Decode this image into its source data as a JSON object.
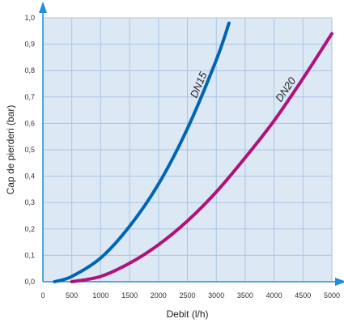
{
  "chart_data": {
    "type": "line",
    "xlabel": "Debit (l/h)",
    "ylabel": "Cap de pierderi (bar)",
    "xlim": [
      0,
      5000
    ],
    "ylim": [
      0,
      1.0
    ],
    "x_ticks": [
      "0",
      "500",
      "1000",
      "1500",
      "2000",
      "2500",
      "3000",
      "3500",
      "4000",
      "4500",
      "5000"
    ],
    "y_ticks": [
      "0,0",
      "0,1",
      "0,2",
      "0,3",
      "0,4",
      "0,5",
      "0,6",
      "0,7",
      "0,8",
      "0,9",
      "1,0"
    ],
    "grid": true,
    "series": [
      {
        "name": "DN15",
        "color": "#0066b3",
        "points": [
          [
            200,
            0.0
          ],
          [
            500,
            0.02
          ],
          [
            1000,
            0.09
          ],
          [
            1500,
            0.21
          ],
          [
            2000,
            0.37
          ],
          [
            2500,
            0.58
          ],
          [
            3000,
            0.84
          ],
          [
            3220,
            0.98
          ]
        ]
      },
      {
        "name": "DN20",
        "color": "#b0127a",
        "points": [
          [
            500,
            0.0
          ],
          [
            1000,
            0.02
          ],
          [
            1500,
            0.07
          ],
          [
            2000,
            0.14
          ],
          [
            2500,
            0.23
          ],
          [
            3000,
            0.34
          ],
          [
            3500,
            0.47
          ],
          [
            4000,
            0.61
          ],
          [
            4500,
            0.77
          ],
          [
            5000,
            0.94
          ]
        ]
      }
    ]
  },
  "colors": {
    "plot_background": "#dce9f5",
    "grid": "#a9c4e2",
    "axis_arrow": "#1f8fd6"
  }
}
